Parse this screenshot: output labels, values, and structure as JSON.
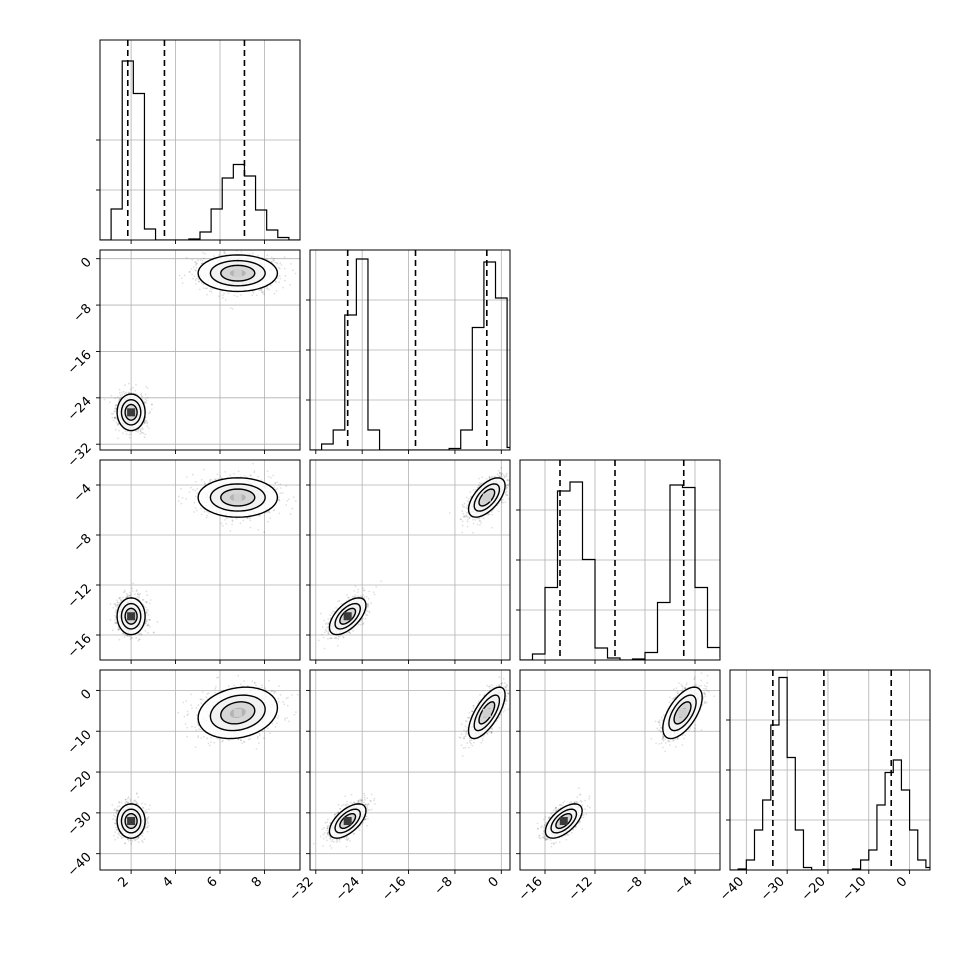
{
  "chart_data": {
    "type": "corner",
    "parameters": [
      {
        "range": [
          0.6,
          9.6
        ],
        "ticks": [
          2,
          4,
          6,
          8
        ],
        "tick_labels": [
          "2",
          "4",
          "6",
          "8"
        ],
        "hist_range": [
          0,
          400
        ],
        "hist_ticks": [
          100,
          200
        ],
        "hist_edges": [
          0.6,
          1.1,
          1.6,
          2.1,
          2.6,
          3.1,
          3.6,
          4.1,
          4.6,
          5.1,
          5.6,
          6.1,
          6.6,
          7.1,
          7.6,
          8.1,
          8.6,
          9.1,
          9.6
        ],
        "hist_counts": [
          0,
          62,
          358,
          293,
          22,
          0,
          0,
          0,
          2,
          16,
          62,
          124,
          151,
          128,
          60,
          20,
          5,
          0
        ],
        "quantiles": [
          1.85,
          3.5,
          7.1
        ],
        "modes": [
          {
            "mean": 2.0,
            "sd": 0.3
          },
          {
            "mean": 6.8,
            "sd": 0.85
          }
        ]
      },
      {
        "range": [
          -33,
          1.5
        ],
        "ticks": [
          -32,
          -24,
          -16,
          -8,
          0
        ],
        "tick_labels": [
          "−32",
          "−24",
          "−16",
          "−8",
          "0"
        ],
        "hist_range": [
          0,
          400
        ],
        "hist_ticks": [
          100,
          200,
          300
        ],
        "hist_edges": [
          -33,
          -31,
          -29,
          -27,
          -25,
          -23,
          -21,
          -19,
          -17,
          -15,
          -13,
          -11,
          -9,
          -7,
          -5,
          -3,
          -1,
          1,
          1.5
        ],
        "hist_counts": [
          0,
          12,
          40,
          270,
          382,
          40,
          0,
          0,
          0,
          0,
          0,
          0,
          3,
          40,
          245,
          376,
          304,
          5
        ],
        "quantiles": [
          -26.5,
          -14.8,
          -2.5
        ],
        "modes": [
          {
            "mean": -26.5,
            "sd": 1.5
          },
          {
            "mean": -2.5,
            "sd": 1.5
          }
        ]
      },
      {
        "range": [
          -18,
          -2
        ],
        "ticks": [
          -16,
          -12,
          -8,
          -4
        ],
        "tick_labels": [
          "−16",
          "−12",
          "−8",
          "−4"
        ],
        "hist_range": [
          0,
          400
        ],
        "hist_ticks": [
          100,
          200,
          300
        ],
        "hist_edges": [
          -18,
          -17,
          -16,
          -15,
          -14,
          -13,
          -12,
          -11,
          -10,
          -9,
          -8,
          -7,
          -6,
          -5,
          -4,
          -3,
          -2
        ],
        "hist_counts": [
          0,
          12,
          145,
          338,
          356,
          201,
          24,
          4,
          0,
          2,
          15,
          115,
          350,
          345,
          145,
          25,
          5
        ],
        "quantiles": [
          -14.8,
          -10.4,
          -4.9
        ],
        "modes": [
          {
            "mean": -14.5,
            "sd": 0.7
          },
          {
            "mean": -5.0,
            "sd": 0.75
          }
        ]
      },
      {
        "range": [
          -44,
          5
        ],
        "ticks": [
          -40,
          -30,
          -20,
          -10,
          0
        ],
        "tick_labels": [
          "−40",
          "−30",
          "−20",
          "−10",
          "0"
        ],
        "hist_range": [
          0,
          400
        ],
        "hist_ticks": [
          100,
          200,
          300
        ],
        "hist_edges": [
          -44,
          -42,
          -40,
          -38,
          -36,
          -34,
          -32,
          -30,
          -28,
          -26,
          -24,
          -22,
          -20,
          -18,
          -16,
          -14,
          -12,
          -10,
          -8,
          -6,
          -4,
          -2,
          0,
          2,
          4,
          5
        ],
        "hist_counts": [
          0,
          2,
          20,
          80,
          140,
          290,
          385,
          225,
          80,
          5,
          0,
          0,
          0,
          0,
          0,
          2,
          20,
          40,
          130,
          195,
          220,
          160,
          80,
          20,
          5
        ],
        "quantiles": [
          -33.5,
          -21.0,
          -4.5
        ],
        "modes": [
          {
            "mean": -32.0,
            "sd": 2.0
          },
          {
            "mean": -5.5,
            "sd": 3.0
          }
        ]
      }
    ],
    "correlations": {
      "1-0": [
        0.0,
        0.0
      ],
      "2-0": [
        0.0,
        0.0
      ],
      "2-1": [
        0.6,
        0.6
      ],
      "3-0": [
        0.0,
        0.2
      ],
      "3-1": [
        0.6,
        0.7
      ],
      "3-2": [
        0.6,
        0.6
      ]
    },
    "grid": true,
    "quantile_line_style": "dashed"
  }
}
